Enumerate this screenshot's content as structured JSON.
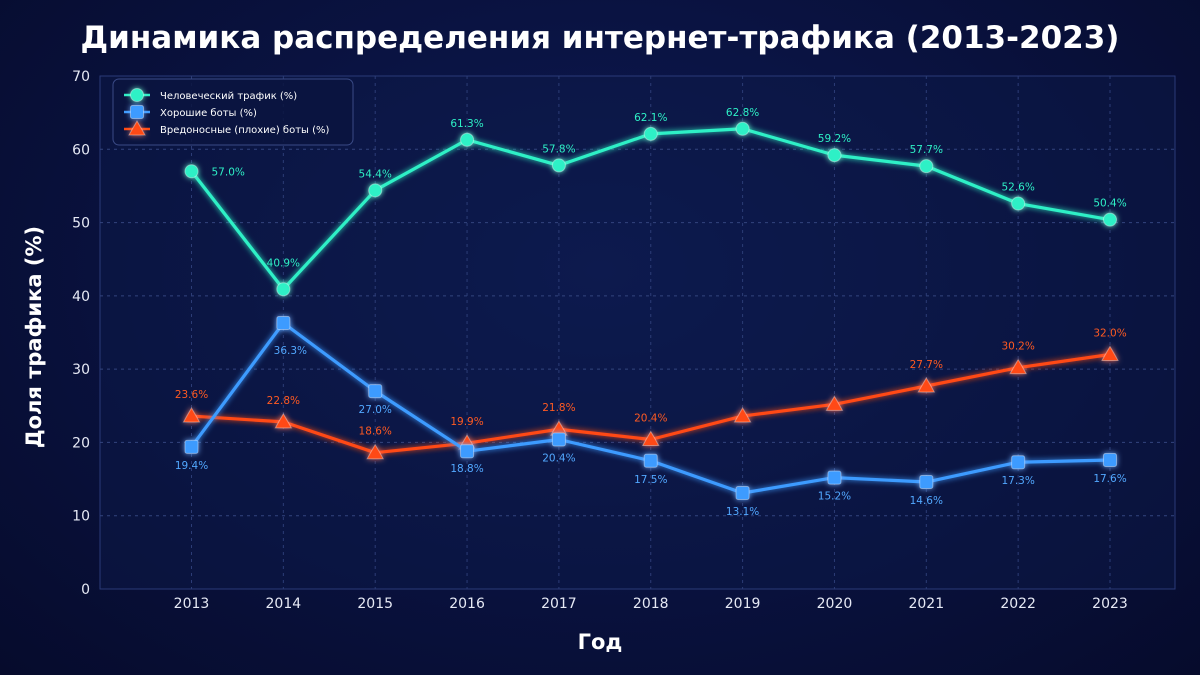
{
  "chart_data": {
    "type": "line",
    "title": "Динамика распределения интернет-трафика (2013-2023)",
    "xlabel": "Год",
    "ylabel": "Доля трафика (%)",
    "ylim": [
      0,
      70
    ],
    "yticks": [
      0,
      10,
      20,
      30,
      40,
      50,
      60,
      70
    ],
    "categories": [
      "2013",
      "2014",
      "2015",
      "2016",
      "2017",
      "2018",
      "2019",
      "2020",
      "2021",
      "2022",
      "2023"
    ],
    "grid": true,
    "legend_position": "top-left",
    "series": [
      {
        "name": "Человеческий трафик (%)",
        "color": "#2ef0c6",
        "marker": "circle",
        "values": [
          57.0,
          40.9,
          54.4,
          61.3,
          57.8,
          62.1,
          62.8,
          59.2,
          57.7,
          52.6,
          50.4
        ],
        "labels": [
          "57.0%",
          "40.9%",
          "54.4%",
          "61.3%",
          "57.8%",
          "62.1%",
          "62.8%",
          "59.2%",
          "57.7%",
          "52.6%",
          "50.4%"
        ]
      },
      {
        "name": "Хорошие боты (%)",
        "color": "#3d9bff",
        "marker": "square",
        "values": [
          19.4,
          36.3,
          27.0,
          18.8,
          20.4,
          17.5,
          13.1,
          15.2,
          14.6,
          17.3,
          17.6
        ],
        "labels": [
          "19.4%",
          "36.3%",
          "27.0%",
          "18.8%",
          "20.4%",
          "17.5%",
          "13.1%",
          "15.2%",
          "14.6%",
          "17.3%",
          "17.6%"
        ]
      },
      {
        "name": "Вредоносные (плохие) боты (%)",
        "color": "#ff4a12",
        "marker": "triangle",
        "values": [
          23.6,
          22.8,
          18.6,
          19.9,
          21.8,
          20.4,
          23.6,
          25.2,
          27.7,
          30.2,
          32.0
        ],
        "labels": [
          "23.6%",
          "22.8%",
          "18.6%",
          "19.9%",
          "21.8%",
          "20.4%",
          "",
          "",
          "27.7%",
          "30.2%",
          "32.0%"
        ]
      }
    ]
  }
}
